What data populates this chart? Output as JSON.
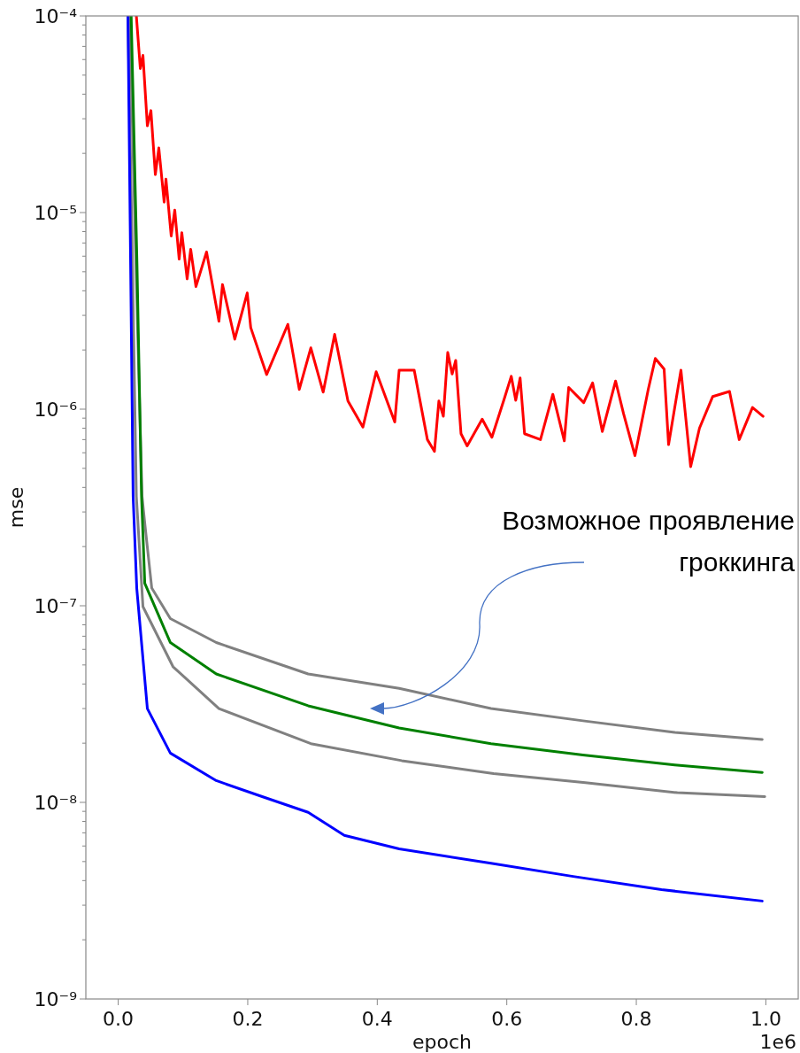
{
  "chart_data": {
    "type": "line",
    "xlabel": "epoch",
    "ylabel": "mse",
    "log": "y",
    "grid": false,
    "marker": "none",
    "line_style": "solid",
    "xlim": [
      -0.05,
      1.05
    ],
    "xticks": [
      {
        "value": 0,
        "label": "0.0"
      },
      {
        "value": 0.2,
        "label": "0.2"
      },
      {
        "value": 0.4,
        "label": "0.4"
      },
      {
        "value": 0.6,
        "label": "0.6"
      },
      {
        "value": 0.8,
        "label": "0.8"
      },
      {
        "value": 1,
        "label": "1.0"
      }
    ],
    "ylim": [
      1e-09,
      0.0001
    ],
    "yticks": [
      {
        "value": 1e-09,
        "label": "10⁻⁹"
      },
      {
        "value": 2e-09,
        "label": null
      },
      {
        "value": 3e-09,
        "label": null
      },
      {
        "value": 4e-09,
        "label": null
      },
      {
        "value": 5e-09,
        "label": null
      },
      {
        "value": 6e-09,
        "label": null
      },
      {
        "value": 7e-09,
        "label": null
      },
      {
        "value": 8e-09,
        "label": null
      },
      {
        "value": 9e-09,
        "label": null
      },
      {
        "value": 1e-08,
        "label": "10⁻⁸"
      },
      {
        "value": 2e-08,
        "label": null
      },
      {
        "value": 3e-08,
        "label": null
      },
      {
        "value": 4e-08,
        "label": null
      },
      {
        "value": 5e-08,
        "label": null
      },
      {
        "value": 6e-08,
        "label": null
      },
      {
        "value": 7e-08,
        "label": null
      },
      {
        "value": 8e-08,
        "label": null
      },
      {
        "value": 9e-08,
        "label": null
      },
      {
        "value": 1e-07,
        "label": "10⁻⁷"
      },
      {
        "value": 2e-07,
        "label": null
      },
      {
        "value": 3e-07,
        "label": null
      },
      {
        "value": 4e-07,
        "label": null
      },
      {
        "value": 5e-07,
        "label": null
      },
      {
        "value": 6e-07,
        "label": null
      },
      {
        "value": 7e-07,
        "label": null
      },
      {
        "value": 8e-07,
        "label": null
      },
      {
        "value": 9e-07,
        "label": null
      },
      {
        "value": 1e-06,
        "label": "10⁻⁶"
      },
      {
        "value": 2e-06,
        "label": null
      },
      {
        "value": 3e-06,
        "label": null
      },
      {
        "value": 4e-06,
        "label": null
      },
      {
        "value": 5e-06,
        "label": null
      },
      {
        "value": 6e-06,
        "label": null
      },
      {
        "value": 7e-06,
        "label": null
      },
      {
        "value": 8e-06,
        "label": null
      },
      {
        "value": 9e-06,
        "label": null
      },
      {
        "value": 1e-05,
        "label": "10⁻⁵"
      },
      {
        "value": 2e-05,
        "label": null
      },
      {
        "value": 3e-05,
        "label": null
      },
      {
        "value": 4e-05,
        "label": null
      },
      {
        "value": 5e-05,
        "label": null
      },
      {
        "value": 6e-05,
        "label": null
      },
      {
        "value": 7e-05,
        "label": null
      },
      {
        "value": 8e-05,
        "label": null
      },
      {
        "value": 9e-05,
        "label": null
      },
      {
        "value": 0.0001,
        "label": "10⁻⁴"
      }
    ],
    "annotations": [
      "Возможное проявление гроккинга",
      "1e6"
    ],
    "series": [
      {
        "color": "#808080",
        "x": [
          0.0177,
          0.0273,
          0.0368,
          0.0409,
          0.0518,
          0.0805,
          0.1514,
          0.2933,
          0.4338,
          0.5756,
          0.7175,
          0.8593,
          0.9944
        ],
        "values": [
          0.0001,
          5.4e-06,
          3.6e-07,
          2.65e-07,
          1.23e-07,
          8.6e-08,
          6.5e-08,
          4.5e-08,
          3.8e-08,
          3e-08,
          2.6e-08,
          2.27e-08,
          2.09e-08
        ]
      },
      {
        "color": "#808080",
        "x": [
          0.015,
          0.022,
          0.028,
          0.0382,
          0.0846,
          0.1555,
          0.2974,
          0.4378,
          0.5796,
          0.7214,
          0.8633,
          0.9984
        ],
        "values": [
          0.0001,
          5.4e-06,
          3.6e-07,
          9.9e-08,
          4.9e-08,
          3e-08,
          1.99e-08,
          1.63e-08,
          1.4e-08,
          1.26e-08,
          1.12e-08,
          1.07e-08
        ]
      },
      {
        "color": "#008000",
        "x": [
          0.02,
          0.029,
          0.036,
          0.041,
          0.0805,
          0.1514,
          0.2933,
          0.4338,
          0.5756,
          0.7175,
          0.8593,
          0.9944
        ],
        "values": [
          0.0001,
          5.4e-06,
          3.6e-07,
          1.3e-07,
          6.5e-08,
          4.5e-08,
          3.1e-08,
          2.39e-08,
          1.99e-08,
          1.74e-08,
          1.55e-08,
          1.42e-08
        ]
      },
      {
        "color": "#0000ff",
        "x": [
          0.015,
          0.023,
          0.0286,
          0.045,
          0.0805,
          0.1514,
          0.2223,
          0.2933,
          0.3491,
          0.4338,
          0.5756,
          0.7024,
          0.8388,
          0.9944
        ],
        "values": [
          0.0001,
          3.6e-07,
          1.23e-07,
          3e-08,
          1.78e-08,
          1.29e-08,
          1.07e-08,
          8.9e-09,
          6.8e-09,
          5.8e-09,
          4.9e-09,
          4.2e-09,
          3.6e-09,
          3.15e-09
        ]
      },
      {
        "color": "#ff0000",
        "x": [
          0.028,
          0.0341,
          0.0382,
          0.045,
          0.0505,
          0.0573,
          0.0627,
          0.0709,
          0.0737,
          0.0818,
          0.0873,
          0.0941,
          0.0982,
          0.1064,
          0.1119,
          0.12,
          0.1364,
          0.1555,
          0.161,
          0.18,
          0.1992,
          0.2046,
          0.2292,
          0.2619,
          0.2796,
          0.2974,
          0.3165,
          0.3342,
          0.3547,
          0.3778,
          0.3983,
          0.427,
          0.4338,
          0.457,
          0.4774,
          0.4883,
          0.4951,
          0.502,
          0.5088,
          0.5156,
          0.5211,
          0.5293,
          0.5388,
          0.562,
          0.577,
          0.5961,
          0.6069,
          0.6138,
          0.6206,
          0.6274,
          0.652,
          0.6711,
          0.6888,
          0.6956,
          0.7188,
          0.7325,
          0.7475,
          0.768,
          0.7802,
          0.7979,
          0.8184,
          0.8293,
          0.8429,
          0.8498,
          0.8689,
          0.8839,
          0.8975,
          0.918,
          0.9439,
          0.9589,
          0.9794,
          0.9957
        ],
        "values": [
          0.0001,
          5.4e-05,
          6.3e-05,
          2.76e-05,
          3.3e-05,
          1.56e-05,
          2.13e-05,
          1.13e-05,
          1.48e-05,
          7.6e-06,
          1.03e-05,
          5.8e-06,
          7.9e-06,
          4.6e-06,
          6.5e-06,
          4.2e-06,
          6.3e-06,
          2.8e-06,
          4.3e-06,
          2.27e-06,
          3.9e-06,
          2.6e-06,
          1.5e-06,
          2.7e-06,
          1.26e-06,
          2.05e-06,
          1.22e-06,
          2.4e-06,
          1.1e-06,
          8.1e-07,
          1.55e-06,
          8.6e-07,
          1.58e-06,
          1.58e-06,
          7e-07,
          6.1e-07,
          1.1e-06,
          9.2e-07,
          1.94e-06,
          1.51e-06,
          1.77e-06,
          7.5e-07,
          6.5e-07,
          8.9e-07,
          7.2e-07,
          1.13e-06,
          1.47e-06,
          1.11e-06,
          1.44e-06,
          7.5e-07,
          7e-07,
          1.19e-06,
          6.9e-07,
          1.29e-06,
          1.08e-06,
          1.36e-06,
          7.7e-07,
          1.39e-06,
          9.5e-07,
          5.8e-07,
          1.26e-06,
          1.81e-06,
          1.6e-06,
          6.6e-07,
          1.58e-06,
          5.1e-07,
          8e-07,
          1.16e-06,
          1.23e-06,
          7e-07,
          1.02e-06,
          9.2e-07
        ]
      }
    ]
  }
}
